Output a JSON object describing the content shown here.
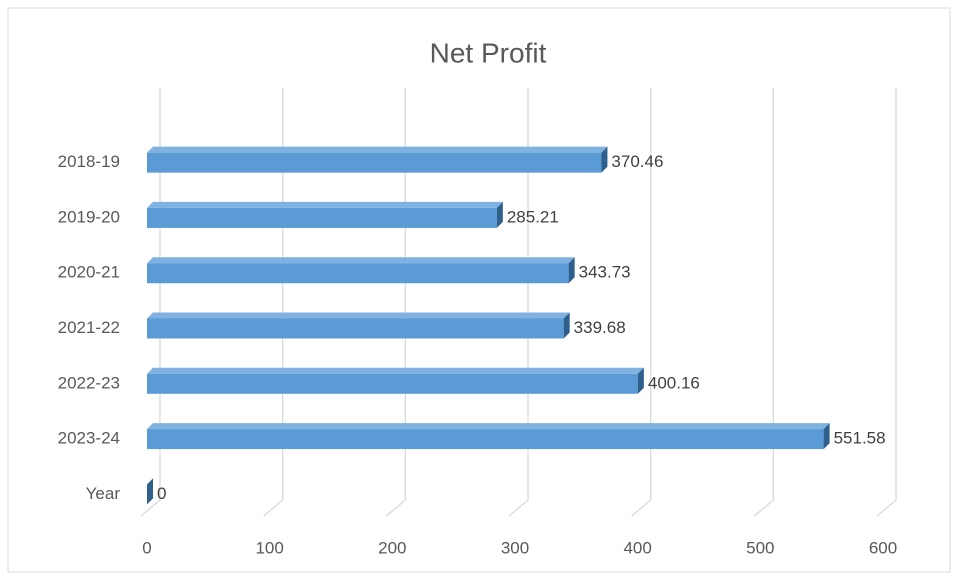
{
  "chart_data": {
    "type": "bar",
    "orientation": "horizontal",
    "title": "Net Profit",
    "categories": [
      "2018-19",
      "2019-20",
      "2020-21",
      "2021-22",
      "2022-23",
      "2023-24",
      "Year"
    ],
    "values": [
      370.46,
      285.21,
      343.73,
      339.68,
      400.16,
      551.58,
      0
    ],
    "color": "#5b9bd5",
    "xlim": [
      0,
      600
    ],
    "xticks": [
      0,
      100,
      200,
      300,
      400,
      500,
      600
    ],
    "grid": true,
    "data_labels": true
  }
}
